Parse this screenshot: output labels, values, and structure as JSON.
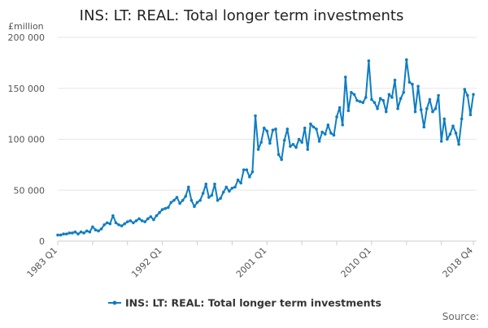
{
  "chart_data": {
    "type": "line",
    "title": "INS: LT: REAL: Total longer term investments",
    "ylabel": "£million",
    "xlabel": "",
    "ylim": [
      0,
      200000
    ],
    "yticks": [
      0,
      50000,
      100000,
      150000,
      200000
    ],
    "ytick_labels": [
      "0",
      "50 000",
      "100 000",
      "150 000",
      "200 000"
    ],
    "start_year": 1983,
    "xtick_labels": [
      "1983 Q1",
      "1992 Q1",
      "2001 Q1",
      "2010 Q1",
      "2018 Q4"
    ],
    "xtick_indices": [
      0,
      36,
      72,
      108,
      143
    ],
    "grid": true,
    "legend_position": "bottom",
    "series": [
      {
        "name": "INS: LT: REAL: Total longer term investments",
        "color": "#0f7dc2",
        "values": [
          6000,
          6000,
          7000,
          7000,
          8000,
          8000,
          9000,
          7000,
          9000,
          8000,
          10000,
          9000,
          14000,
          11000,
          10000,
          12000,
          16000,
          18000,
          17000,
          25000,
          18000,
          16000,
          15000,
          17000,
          19000,
          20000,
          18000,
          20000,
          22000,
          20000,
          19000,
          22000,
          24000,
          21000,
          25000,
          28000,
          31000,
          32000,
          33000,
          38000,
          40000,
          43000,
          37000,
          40000,
          44000,
          53000,
          40000,
          34000,
          38000,
          40000,
          47000,
          56000,
          43000,
          45000,
          56000,
          40000,
          42000,
          48000,
          53000,
          49000,
          52000,
          53000,
          60000,
          57000,
          70000,
          70000,
          63000,
          68000,
          123000,
          90000,
          97000,
          111000,
          108000,
          96000,
          109000,
          110000,
          85000,
          80000,
          99000,
          110000,
          93000,
          95000,
          92000,
          100000,
          97000,
          111000,
          90000,
          115000,
          112000,
          110000,
          98000,
          107000,
          105000,
          114000,
          106000,
          104000,
          122000,
          131000,
          114000,
          161000,
          128000,
          146000,
          144000,
          138000,
          137000,
          136000,
          141000,
          177000,
          139000,
          136000,
          130000,
          140000,
          138000,
          127000,
          144000,
          141000,
          158000,
          130000,
          140000,
          146000,
          178000,
          156000,
          154000,
          127000,
          152000,
          129000,
          112000,
          130000,
          139000,
          127000,
          130000,
          143000,
          98000,
          120000,
          100000,
          105000,
          113000,
          106000,
          95000,
          120000,
          149000,
          143000,
          124000,
          144000
        ]
      }
    ]
  },
  "footer": {
    "source_label": "Source:"
  }
}
